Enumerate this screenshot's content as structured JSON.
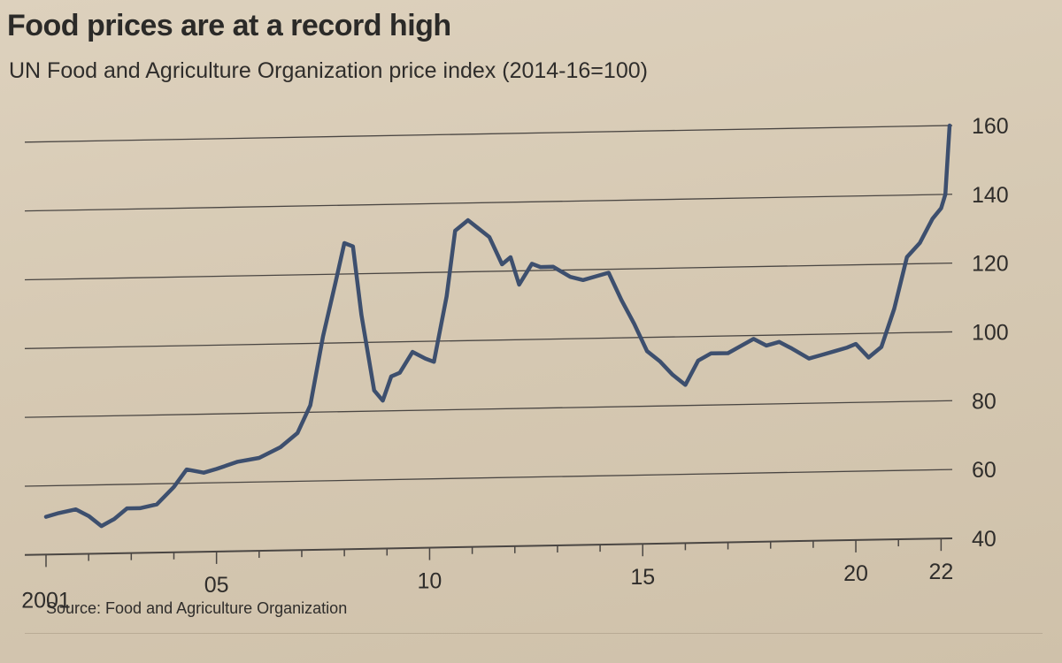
{
  "header": {
    "title": "Food prices are at a record high",
    "subtitle": "UN Food and Agriculture Organization price index (2014-16=100)"
  },
  "footer": {
    "source": "Source: Food and Agriculture Organization"
  },
  "colors": {
    "line": "#3d4f6e",
    "grid": "#4a4643",
    "text": "#2f2d2b",
    "background": "#d8cbb6"
  },
  "chart_data": {
    "type": "line",
    "title": "Food prices are at a record high",
    "subtitle": "UN Food and Agriculture Organization price index (2014-16=100)",
    "xlabel": "",
    "ylabel": "",
    "ylim": [
      40,
      160
    ],
    "xlim": [
      2001,
      2022.2
    ],
    "y_ticks": [
      40,
      60,
      80,
      100,
      120,
      140,
      160
    ],
    "y_tick_labels": [
      "40",
      "60",
      "80",
      "100",
      "120",
      "140",
      "160"
    ],
    "x_ticks": [
      2001,
      2005,
      2010,
      2015,
      2020,
      2022
    ],
    "x_tick_labels": [
      "2001",
      "05",
      "10",
      "15",
      "20",
      "22"
    ],
    "grid": "horizontal",
    "series": [
      {
        "x": [
          2001.0,
          2001.3,
          2001.7,
          2002.0,
          2002.3,
          2002.6,
          2002.9,
          2003.2,
          2003.6,
          2004.0,
          2004.3,
          2004.7,
          2005.0,
          2005.5,
          2006.0,
          2006.5,
          2006.9,
          2007.2,
          2007.5,
          2007.8,
          2008.0,
          2008.2,
          2008.4,
          2008.7,
          2008.9,
          2009.1,
          2009.3,
          2009.6,
          2009.9,
          2010.1,
          2010.4,
          2010.6,
          2010.9,
          2011.1,
          2011.4,
          2011.7,
          2011.9,
          2012.1,
          2012.4,
          2012.6,
          2012.9,
          2013.3,
          2013.6,
          2013.9,
          2014.2,
          2014.5,
          2014.8,
          2015.1,
          2015.4,
          2015.7,
          2016.0,
          2016.3,
          2016.6,
          2017.0,
          2017.3,
          2017.6,
          2017.9,
          2018.2,
          2018.5,
          2018.9,
          2019.2,
          2019.5,
          2019.8,
          2020.0,
          2020.3,
          2020.6,
          2020.9,
          2021.2,
          2021.5,
          2021.8,
          2022.0,
          2022.1,
          2022.2
        ],
        "y": [
          51,
          52,
          53,
          51,
          48,
          50,
          53,
          53,
          54,
          59,
          64,
          63,
          64,
          66,
          67,
          70,
          74,
          82,
          102,
          118,
          129,
          128,
          108,
          86,
          83,
          90,
          91,
          97,
          95,
          94,
          113,
          132,
          135,
          133,
          130,
          122,
          124,
          116,
          122,
          121,
          121,
          118,
          117,
          118,
          119,
          111,
          104,
          96,
          93,
          89,
          86,
          93,
          95,
          95,
          97,
          99,
          97,
          98,
          96,
          93,
          94,
          95,
          96,
          97,
          93,
          96,
          107,
          122,
          126,
          133,
          136,
          140,
          160
        ]
      }
    ]
  }
}
